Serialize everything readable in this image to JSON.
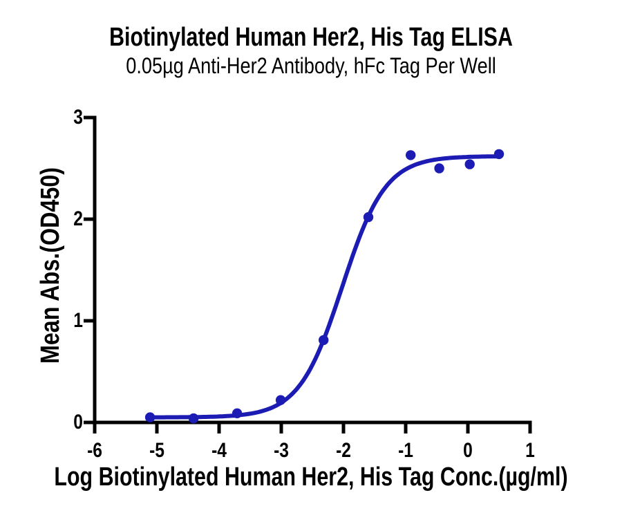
{
  "chart_data": {
    "type": "scatter",
    "title": "Biotinylated Human Her2, His Tag ELISA",
    "subtitle": "0.05µg Anti-Her2 Antibody, hFc Tag Per Well",
    "xlabel": "Log Biotinylated Human Her2, His Tag Conc.(µg/ml)",
    "ylabel": "Mean Abs.(OD450)",
    "xlim": [
      -6,
      1
    ],
    "ylim": [
      0,
      3
    ],
    "x_ticks": [
      -6,
      -5,
      -4,
      -3,
      -2,
      -1,
      0,
      1
    ],
    "y_ticks": [
      0,
      1,
      2,
      3
    ],
    "grid": false,
    "legend": false,
    "marker": "circle",
    "series": [
      {
        "name": "Mean Abs.(OD450)",
        "x": [
          -5.11,
          -4.41,
          -3.71,
          -3.01,
          -2.32,
          -1.6,
          -0.92,
          -0.46,
          0.03,
          0.5
        ],
        "y": [
          0.05,
          0.04,
          0.09,
          0.22,
          0.81,
          2.02,
          2.63,
          2.5,
          2.54,
          2.64
        ]
      }
    ],
    "fit_curve": {
      "model": "4PL sigmoid",
      "bottom": 0.05,
      "top": 2.62,
      "logEC50": -2.02,
      "hillslope": 1.25,
      "x_start": -5.11,
      "x_end": 0.5
    },
    "colors": {
      "series": "#1c1cb4",
      "axis": "#000000",
      "text": "#000000",
      "background": "#ffffff"
    }
  }
}
